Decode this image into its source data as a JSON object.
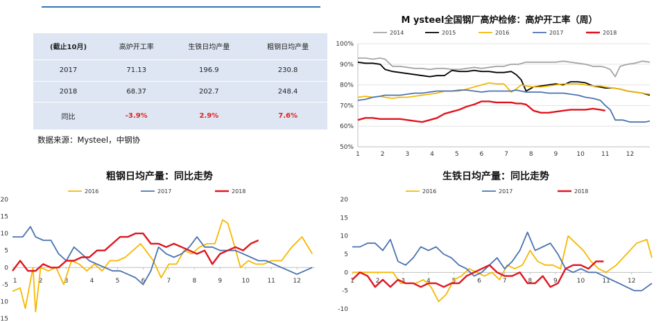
{
  "table": {
    "headers": [
      "(截止10月)",
      "高炉开工率",
      "生铁日均产量",
      "粗钢日均产量"
    ],
    "rows": [
      [
        "2017",
        "71.13",
        "196.9",
        "230.8"
      ],
      [
        "2018",
        "68.37",
        "202.7",
        "248.4"
      ],
      [
        "同比",
        "-3.9%",
        "2.9%",
        "7.6%"
      ]
    ]
  },
  "note": "数据来源：Mysteel，中钢协",
  "colors": {
    "s2014": "#a5a5a5",
    "s2015": "#000000",
    "s2016": "#f5b800",
    "s2017": "#4a72b0",
    "s2018": "#e0141e",
    "red_text": "#e02020",
    "table_bg": "#dde6f2",
    "topline": "#2e75b6"
  },
  "chart_data": [
    {
      "type": "line",
      "title": "M ysteel全国钢厂高炉检修：高炉开工率（周）",
      "x_ticks": [
        "1",
        "2",
        "3",
        "4",
        "5",
        "6",
        "7",
        "8",
        "9",
        "10",
        "11",
        "12"
      ],
      "y_ticks": [
        "50%",
        "60%",
        "70%",
        "80%",
        "90%",
        "100%"
      ],
      "ylim": [
        50,
        100
      ],
      "xlim": [
        1,
        12.8
      ],
      "legend": "top",
      "series": [
        {
          "name": "2014",
          "x": [
            1,
            1.3,
            1.6,
            1.9,
            2.1,
            2.4,
            2.7,
            3,
            3.3,
            3.6,
            3.9,
            4.2,
            4.5,
            4.8,
            5.1,
            5.4,
            5.7,
            6,
            6.3,
            6.6,
            6.9,
            7.2,
            7.5,
            7.8,
            8.1,
            8.4,
            8.7,
            9,
            9.3,
            9.6,
            9.9,
            10.2,
            10.5,
            10.8,
            11,
            11.2,
            11.4,
            11.6,
            11.9,
            12.2,
            12.5,
            12.8
          ],
          "y": [
            93,
            93,
            92.5,
            93,
            92.5,
            89,
            89,
            88.5,
            88,
            88,
            87.5,
            88,
            88,
            87.5,
            87.5,
            88,
            88.5,
            88,
            88.5,
            89,
            89,
            90,
            90,
            91,
            91,
            91,
            91,
            91,
            91.5,
            91,
            90.5,
            90,
            89,
            89,
            88.5,
            87.5,
            84,
            89,
            90,
            90.5,
            91.5,
            91
          ]
        },
        {
          "name": "2015",
          "x": [
            1,
            1.3,
            1.6,
            1.9,
            2.1,
            2.4,
            2.7,
            3,
            3.3,
            3.6,
            3.9,
            4.2,
            4.5,
            4.8,
            5.1,
            5.4,
            5.7,
            6,
            6.3,
            6.6,
            6.9,
            7.2,
            7.4,
            7.6,
            7.8,
            8.1,
            8.4,
            8.7,
            9,
            9.3,
            9.6,
            9.9,
            10.2,
            10.5,
            10.8,
            11,
            11.3,
            11.6,
            11.9,
            12.2,
            12.5,
            12.8
          ],
          "y": [
            91,
            90.5,
            90.5,
            90,
            87.5,
            86.5,
            86,
            85.5,
            85,
            84.5,
            84,
            84.5,
            84.5,
            87,
            86.5,
            86.5,
            87,
            86.5,
            86.5,
            86,
            86,
            86.5,
            85,
            82.5,
            77,
            79,
            79.5,
            80,
            80.5,
            80,
            81.5,
            81.5,
            81,
            79.5,
            79,
            78.5,
            78.5,
            78,
            77,
            76.5,
            76,
            75
          ]
        },
        {
          "name": "2016",
          "x": [
            1,
            1.3,
            1.6,
            1.9,
            2.1,
            2.4,
            2.7,
            3,
            3.3,
            3.6,
            3.9,
            4.2,
            4.5,
            4.8,
            5.1,
            5.4,
            5.7,
            6,
            6.3,
            6.6,
            6.9,
            7.2,
            7.4,
            7.6,
            7.8,
            8.1,
            8.4,
            8.7,
            9,
            9.3,
            9.6,
            9.9,
            10.2,
            10.5,
            10.8,
            11,
            11.3,
            11.6,
            11.9,
            12.2,
            12.5,
            12.8
          ],
          "y": [
            74,
            74.5,
            74,
            74.5,
            74,
            73.5,
            74,
            74,
            74.5,
            75,
            75.5,
            76,
            77,
            77,
            77,
            78,
            79,
            80,
            81,
            80.5,
            80.5,
            76.5,
            78,
            80,
            79.5,
            79,
            79,
            79.5,
            80,
            80.5,
            80.5,
            80.5,
            80,
            79.5,
            79.5,
            79,
            78.5,
            78,
            77,
            76.5,
            76,
            75.5
          ]
        },
        {
          "name": "2017",
          "x": [
            1,
            1.3,
            1.6,
            1.9,
            2.1,
            2.4,
            2.7,
            3,
            3.3,
            3.6,
            3.9,
            4.2,
            4.5,
            4.8,
            5.1,
            5.4,
            5.7,
            6,
            6.3,
            6.6,
            6.9,
            7.2,
            7.4,
            7.6,
            7.8,
            8.1,
            8.4,
            8.7,
            9,
            9.3,
            9.6,
            9.9,
            10.2,
            10.5,
            10.8,
            11,
            11.2,
            11.4,
            11.7,
            12,
            12.3,
            12.6,
            12.8
          ],
          "y": [
            72.5,
            73,
            74,
            74.5,
            75,
            75,
            75,
            75.5,
            76,
            76,
            76.5,
            77,
            77,
            77,
            77.5,
            77.5,
            77,
            76.5,
            77,
            77,
            77,
            77,
            77.5,
            77,
            76.5,
            76.5,
            76.5,
            76,
            76,
            76,
            75.5,
            75,
            74,
            73.5,
            72.5,
            70,
            68,
            63,
            63,
            62,
            62,
            62,
            62.5
          ]
        },
        {
          "name": "2018",
          "x": [
            1,
            1.3,
            1.6,
            1.9,
            2.1,
            2.4,
            2.7,
            3,
            3.3,
            3.6,
            3.9,
            4.2,
            4.5,
            4.8,
            5.1,
            5.4,
            5.7,
            6,
            6.3,
            6.6,
            6.9,
            7.2,
            7.4,
            7.6,
            7.8,
            8.1,
            8.4,
            8.7,
            9,
            9.3,
            9.6,
            9.9,
            10.2,
            10.5,
            10.8,
            11
          ],
          "y": [
            63,
            64,
            64,
            63.5,
            63.5,
            63.5,
            63.5,
            63,
            62.5,
            62,
            63,
            64,
            66,
            67,
            68,
            69.5,
            70.5,
            72,
            72,
            71.5,
            71.5,
            71.5,
            71,
            71,
            70.5,
            67.5,
            66.5,
            66.5,
            67,
            67.5,
            68,
            68,
            68,
            68.5,
            68,
            67.5
          ]
        }
      ]
    },
    {
      "type": "line",
      "title": "粗钢日均产量：同比走势",
      "x_ticks": [
        "1",
        "2",
        "3",
        "4",
        "5",
        "6",
        "7",
        "8",
        "9",
        "10",
        "11",
        "12"
      ],
      "y_ticks": [
        "-15",
        "-10",
        "-5",
        "0",
        "5",
        "10",
        "15",
        "20"
      ],
      "ylim": [
        -15,
        20
      ],
      "xlim": [
        0.9,
        12.7
      ],
      "legend": "top",
      "series": [
        {
          "name": "2016",
          "x": [
            0.9,
            1.2,
            1.4,
            1.7,
            1.8,
            2.0,
            2.3,
            2.6,
            2.9,
            3.2,
            3.5,
            3.8,
            4.1,
            4.4,
            4.7,
            5.0,
            5.3,
            5.6,
            5.9,
            6.2,
            6.4,
            6.7,
            7.0,
            7.3,
            7.6,
            7.9,
            8.2,
            8.5,
            8.8,
            9.1,
            9.3,
            9.5,
            9.8,
            10.1,
            10.4,
            10.7,
            11.0,
            11.4,
            11.8,
            12.2,
            12.6
          ],
          "y": [
            -7,
            -6,
            -12,
            0,
            -13,
            0,
            -1,
            0,
            -5,
            2,
            1,
            -1,
            1,
            -1,
            2,
            2,
            3,
            5,
            7,
            4,
            2,
            -3,
            1,
            1,
            5,
            4,
            6,
            7,
            7,
            14,
            13,
            8,
            0,
            2,
            1,
            1,
            2,
            2,
            6,
            9,
            4
          ]
        },
        {
          "name": "2017",
          "x": [
            0.9,
            1.3,
            1.6,
            1.8,
            2.1,
            2.4,
            2.7,
            3.0,
            3.3,
            3.6,
            3.9,
            4.2,
            4.5,
            4.8,
            5.1,
            5.4,
            5.7,
            6.0,
            6.3,
            6.6,
            6.9,
            7.2,
            7.5,
            7.8,
            8.1,
            8.4,
            8.7,
            9.0,
            9.3,
            9.6,
            9.9,
            10.2,
            10.5,
            10.8,
            11.1,
            11.4,
            11.7,
            12.0,
            12.3,
            12.6
          ],
          "y": [
            9,
            9,
            12,
            9,
            8,
            8,
            4,
            2,
            6,
            4,
            2,
            1,
            0,
            -1,
            -1,
            -2,
            -3,
            -5,
            -1,
            6,
            4,
            3,
            4,
            6,
            9,
            6,
            6,
            5,
            5,
            5,
            4,
            3,
            2,
            2,
            1,
            0,
            -1,
            -2,
            -1,
            0
          ]
        },
        {
          "name": "2018",
          "x": [
            0.9,
            1.2,
            1.5,
            1.8,
            2.1,
            2.4,
            2.7,
            3.0,
            3.3,
            3.6,
            3.9,
            4.2,
            4.5,
            4.8,
            5.1,
            5.4,
            5.7,
            6.0,
            6.3,
            6.6,
            6.9,
            7.2,
            7.5,
            7.8,
            8.1,
            8.4,
            8.7,
            9.0,
            9.3,
            9.6,
            9.9,
            10.2,
            10.5
          ],
          "y": [
            -1,
            2,
            -1,
            -1,
            1,
            0,
            0,
            2,
            2,
            3,
            3,
            5,
            5,
            7,
            9,
            9,
            10,
            10,
            7,
            7,
            6,
            7,
            6,
            5,
            4,
            5,
            1,
            4,
            5,
            6,
            5,
            7,
            8
          ]
        }
      ]
    },
    {
      "type": "line",
      "title": "生铁日均产量：同比走势",
      "x_ticks": [
        "1",
        "2",
        "3",
        "4",
        "5",
        "6",
        "7",
        "8",
        "9",
        "10",
        "11",
        "12"
      ],
      "y_ticks": [
        "-10",
        "-5",
        "0",
        "5",
        "10",
        "15",
        "20"
      ],
      "ylim": [
        -10,
        20
      ],
      "xlim": [
        1,
        12.8
      ],
      "legend": "top",
      "series": [
        {
          "name": "2016",
          "x": [
            1,
            1.4,
            1.7,
            2,
            2.3,
            2.6,
            2.9,
            3.2,
            3.5,
            3.8,
            4.1,
            4.4,
            4.7,
            5,
            5.3,
            5.6,
            5.9,
            6.2,
            6.5,
            6.8,
            7.1,
            7.4,
            7.7,
            8,
            8.3,
            8.6,
            8.9,
            9.2,
            9.5,
            9.8,
            10.1,
            10.4,
            10.7,
            11,
            11.4,
            11.8,
            12.2,
            12.6,
            12.8
          ],
          "y": [
            0,
            0,
            0,
            0,
            0,
            0,
            -3,
            -3,
            -3,
            -2,
            -4,
            -8,
            -6,
            -2,
            -1,
            1,
            0,
            -1,
            0,
            -2,
            2,
            1,
            2,
            6,
            3,
            2,
            2,
            1,
            10,
            8,
            6,
            3,
            1,
            0,
            2,
            5,
            8,
            9,
            4
          ]
        },
        {
          "name": "2017",
          "x": [
            1,
            1.3,
            1.6,
            1.9,
            2.2,
            2.5,
            2.8,
            3.1,
            3.4,
            3.7,
            4,
            4.3,
            4.6,
            4.9,
            5.2,
            5.5,
            5.8,
            6.1,
            6.4,
            6.7,
            7,
            7.3,
            7.6,
            7.9,
            8.2,
            8.5,
            8.8,
            9.1,
            9.4,
            9.7,
            10,
            10.3,
            10.6,
            10.9,
            11.2,
            11.5,
            11.8,
            12.1,
            12.4,
            12.8
          ],
          "y": [
            7,
            7,
            8,
            8,
            6,
            9,
            3,
            2,
            4,
            7,
            6,
            7,
            5,
            4,
            2,
            1,
            -1,
            0,
            2,
            4,
            1,
            3,
            6,
            11,
            6,
            7,
            8,
            5,
            1,
            0,
            1,
            0,
            0,
            -1,
            -2,
            -3,
            -4,
            -5,
            -5,
            -3
          ]
        },
        {
          "name": "2018",
          "x": [
            1,
            1.3,
            1.6,
            1.9,
            2.2,
            2.5,
            2.8,
            3.1,
            3.4,
            3.7,
            4,
            4.3,
            4.6,
            4.9,
            5.2,
            5.5,
            5.8,
            6.1,
            6.4,
            6.7,
            7,
            7.3,
            7.6,
            7.9,
            8.2,
            8.5,
            8.8,
            9.1,
            9.4,
            9.7,
            10,
            10.3,
            10.6,
            10.9
          ],
          "y": [
            -2,
            0,
            -1,
            -4,
            -2,
            -4,
            -2,
            -3,
            -3,
            -4,
            -3,
            -3,
            -4,
            -3,
            -3,
            -1,
            0,
            1,
            2,
            0,
            -1,
            -1,
            0,
            -3,
            -3,
            -1,
            -4,
            -3,
            1,
            2,
            2,
            1,
            3,
            3
          ]
        }
      ]
    }
  ]
}
